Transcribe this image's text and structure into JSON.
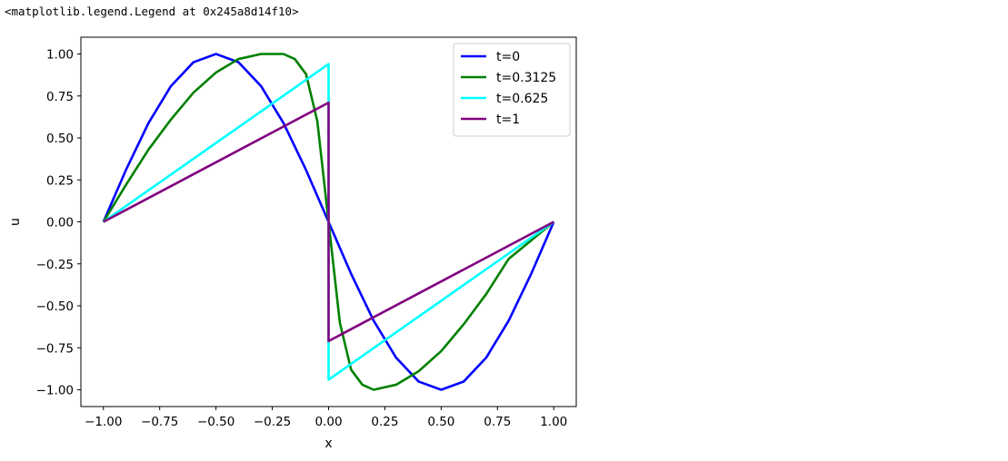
{
  "output": {
    "repr_text": "<matplotlib.legend.Legend at 0x245a8d14f10>"
  },
  "chart_data": {
    "type": "line",
    "xlabel": "x",
    "ylabel": "u",
    "xlim": [
      -1.1,
      1.1
    ],
    "ylim": [
      -1.1,
      1.1
    ],
    "xticks": [
      -1.0,
      -0.75,
      -0.5,
      -0.25,
      0.0,
      0.25,
      0.5,
      0.75,
      1.0
    ],
    "yticks": [
      -1.0,
      -0.75,
      -0.5,
      -0.25,
      0.0,
      0.25,
      0.5,
      0.75,
      1.0
    ],
    "xtick_labels": [
      "−1.00",
      "−0.75",
      "−0.50",
      "−0.25",
      "0.00",
      "0.25",
      "0.50",
      "0.75",
      "1.00"
    ],
    "ytick_labels": [
      "−1.00",
      "−0.75",
      "−0.50",
      "−0.25",
      "0.00",
      "0.25",
      "0.50",
      "0.75",
      "1.00"
    ],
    "grid": false,
    "legend_position": "top-right",
    "series": [
      {
        "name": "t=0",
        "color": "#0000ff",
        "x": [
          -1.0,
          -0.9,
          -0.8,
          -0.7,
          -0.6,
          -0.5,
          -0.4,
          -0.3,
          -0.2,
          -0.1,
          0.0,
          0.1,
          0.2,
          0.3,
          0.4,
          0.5,
          0.6,
          0.7,
          0.8,
          0.9,
          1.0
        ],
        "y": [
          0.0,
          0.309,
          0.588,
          0.809,
          0.951,
          1.0,
          0.951,
          0.809,
          0.588,
          0.309,
          0.0,
          -0.309,
          -0.588,
          -0.809,
          -0.951,
          -1.0,
          -0.951,
          -0.809,
          -0.588,
          -0.309,
          0.0
        ]
      },
      {
        "name": "t=0.3125",
        "color": "#008000",
        "x": [
          -1.0,
          -0.9,
          -0.8,
          -0.7,
          -0.6,
          -0.5,
          -0.4,
          -0.3,
          -0.2,
          -0.15,
          -0.1,
          -0.05,
          0.0,
          0.05,
          0.1,
          0.15,
          0.2,
          0.3,
          0.4,
          0.5,
          0.6,
          0.7,
          0.8,
          0.9,
          1.0
        ],
        "y": [
          0.0,
          0.22,
          0.43,
          0.61,
          0.77,
          0.89,
          0.97,
          1.0,
          1.0,
          0.97,
          0.88,
          0.6,
          0.0,
          -0.6,
          -0.88,
          -0.97,
          -1.0,
          -0.97,
          -0.89,
          -0.77,
          -0.61,
          -0.43,
          -0.22,
          -0.11,
          0.0
        ]
      },
      {
        "name": "t=0.625",
        "color": "#00ffff",
        "x": [
          -1.0,
          0.0,
          0.0,
          1.0
        ],
        "y": [
          0.0,
          0.94,
          -0.94,
          0.0
        ]
      },
      {
        "name": "t=1",
        "color": "#800080",
        "x": [
          -1.0,
          0.0,
          0.0,
          1.0
        ],
        "y": [
          0.0,
          0.71,
          -0.71,
          0.0
        ]
      }
    ]
  }
}
